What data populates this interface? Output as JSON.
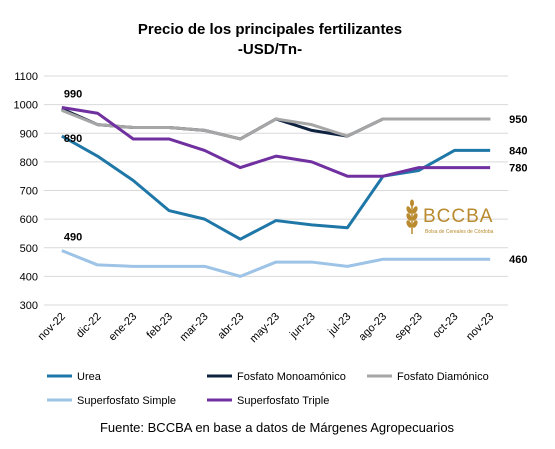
{
  "chart_data": {
    "type": "line",
    "title": "Precio de los principales fertilizantes",
    "subtitle": "-USD/Tn-",
    "categories": [
      "nov-22",
      "dic-22",
      "ene-23",
      "feb-23",
      "mar-23",
      "abr-23",
      "may-23",
      "jun-23",
      "jul-23",
      "ago-23",
      "sep-23",
      "oct-23",
      "nov-23"
    ],
    "ylim": [
      300,
      1100
    ],
    "yticks": [
      300,
      400,
      500,
      600,
      700,
      800,
      900,
      1000,
      1100
    ],
    "grid": true,
    "legend_position": "bottom",
    "series": [
      {
        "name": "Urea",
        "color": "#1f77a8",
        "values": [
          890,
          820,
          735,
          630,
          600,
          530,
          595,
          580,
          570,
          750,
          770,
          840,
          840
        ]
      },
      {
        "name": "Fosfato Monoamónico",
        "color": "#0f2340",
        "values": [
          985,
          930,
          920,
          920,
          910,
          880,
          950,
          910,
          890,
          950,
          950,
          950,
          950
        ]
      },
      {
        "name": "Fosfato Diamónico",
        "color": "#a6a6a6",
        "values": [
          980,
          930,
          920,
          920,
          910,
          880,
          950,
          930,
          890,
          950,
          950,
          950,
          950
        ]
      },
      {
        "name": "Superfosfato Simple",
        "color": "#9dc3e6",
        "values": [
          490,
          440,
          435,
          435,
          435,
          400,
          450,
          450,
          435,
          460,
          460,
          460,
          460
        ]
      },
      {
        "name": "Superfosfato Triple",
        "color": "#7030a0",
        "values": [
          990,
          970,
          880,
          880,
          840,
          780,
          820,
          800,
          750,
          750,
          780,
          780,
          780
        ]
      }
    ],
    "data_labels": [
      {
        "text": "990",
        "series": 4,
        "index": 0
      },
      {
        "text": "890",
        "series": 0,
        "index": 0
      },
      {
        "text": "490",
        "series": 3,
        "index": 0
      },
      {
        "text": "950",
        "series": 2,
        "index": 12
      },
      {
        "text": "840",
        "series": 0,
        "index": 12
      },
      {
        "text": "780",
        "series": 4,
        "index": 12
      },
      {
        "text": "460",
        "series": 3,
        "index": 12
      }
    ]
  },
  "logo": {
    "name": "BCCBA",
    "tagline": "Bolsa de Cereales de Córdoba",
    "color": "#b98a2e"
  },
  "source_note": "Fuente: BCCBA en base a datos de Márgenes Agropecuarios"
}
